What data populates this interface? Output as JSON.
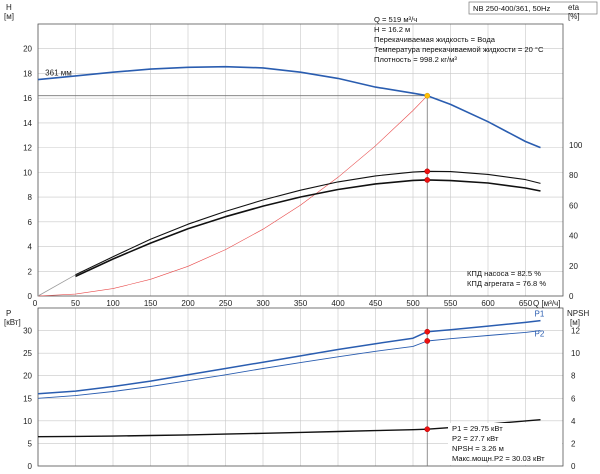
{
  "model": "NB 250-400/361, 50Hz",
  "chart_data": [
    {
      "id": "head_eff",
      "type": "line",
      "y_left_label": [
        "H",
        "[м]"
      ],
      "y_right_label": [
        "eta",
        "[%]"
      ],
      "x_label": "Q [м³/ч]",
      "xlim": [
        0,
        700
      ],
      "ylim_left": [
        0,
        22
      ],
      "ylim_right": [
        0,
        180
      ],
      "x_ticks": [
        0,
        50,
        100,
        150,
        200,
        250,
        300,
        350,
        400,
        450,
        500,
        550,
        600,
        650
      ],
      "y_left_ticks": [
        0,
        2,
        4,
        6,
        8,
        10,
        12,
        14,
        16,
        18,
        20
      ],
      "y_right_ticks": [
        0,
        20,
        40,
        60,
        80,
        100
      ],
      "curve_label": "361 мм",
      "grid": true,
      "series": [
        {
          "key": "head",
          "color": "#2a5db0",
          "width": 1.6,
          "axis": "left",
          "x": [
            0,
            50,
            100,
            150,
            200,
            250,
            300,
            350,
            400,
            450,
            500,
            519,
            550,
            600,
            650,
            670
          ],
          "y": [
            17.5,
            17.8,
            18.1,
            18.35,
            18.5,
            18.55,
            18.45,
            18.1,
            17.6,
            16.9,
            16.4,
            16.2,
            15.5,
            14.1,
            12.5,
            12.0
          ]
        },
        {
          "key": "system_curve",
          "color": "#e84a4a",
          "width": 0.6,
          "axis": "left",
          "x": [
            0,
            50,
            100,
            150,
            200,
            250,
            300,
            350,
            400,
            450,
            500,
            519
          ],
          "y": [
            0,
            0.15,
            0.6,
            1.35,
            2.4,
            3.75,
            5.4,
            7.35,
            9.6,
            12.15,
            15.0,
            16.2
          ]
        },
        {
          "key": "eta_pump",
          "color": "#111111",
          "width": 1.1,
          "axis": "right",
          "x": [
            50,
            100,
            150,
            200,
            250,
            300,
            350,
            400,
            450,
            500,
            519,
            550,
            600,
            650,
            670
          ],
          "y": [
            14,
            26,
            37.5,
            47.5,
            56,
            63.5,
            70,
            75.5,
            79.5,
            82,
            82.5,
            82.3,
            80.5,
            77,
            74.5
          ]
        },
        {
          "key": "eta_unit",
          "color": "#111111",
          "width": 1.6,
          "axis": "right",
          "x": [
            50,
            100,
            150,
            200,
            250,
            300,
            350,
            400,
            450,
            500,
            519,
            550,
            600,
            650,
            670
          ],
          "y": [
            13,
            24.5,
            35,
            44.5,
            52.5,
            59.5,
            65.5,
            70.5,
            74.2,
            76.5,
            76.8,
            76.4,
            74.8,
            71.5,
            69.5
          ]
        },
        {
          "key": "eta_grey",
          "color": "#9a9a9a",
          "width": 0.8,
          "axis": "right",
          "x": [
            0,
            50
          ],
          "y": [
            0,
            14
          ]
        }
      ],
      "markers": [
        {
          "x": 519,
          "y": 16.2,
          "axis": "left",
          "color": "#ffc107"
        },
        {
          "x": 519,
          "y": 82.5,
          "axis": "right",
          "color": "#e11"
        },
        {
          "x": 519,
          "y": 76.8,
          "axis": "right",
          "color": "#e11"
        }
      ],
      "info_lines": [
        "Q = 519 м³/ч",
        "H = 16.2 м",
        "Перекачиваемая жидкость = Вода",
        "Температура перекачиваемой жидкости = 20 °C",
        "Плотность = 998.2 кг/м³"
      ],
      "eff_lines": [
        "КПД насоса = 82.5 %",
        "КПД агрегата = 76.8 %"
      ]
    },
    {
      "id": "power_npsh",
      "type": "line",
      "y_left_label": [
        "P",
        "[кВт]"
      ],
      "y_right_label": [
        "NPSH",
        "[м]"
      ],
      "ylim_left": [
        0,
        35
      ],
      "ylim_right": [
        0,
        14
      ],
      "y_left_ticks": [
        0,
        5,
        10,
        15,
        20,
        25,
        30
      ],
      "y_right_ticks": [
        0,
        2,
        4,
        6,
        8,
        10,
        12
      ],
      "grid": true,
      "series": [
        {
          "key": "P1",
          "name": "P1",
          "color": "#2a5db0",
          "width": 1.5,
          "axis": "left",
          "x": [
            0,
            50,
            100,
            150,
            200,
            250,
            300,
            350,
            400,
            450,
            500,
            519,
            550,
            600,
            650,
            670
          ],
          "y": [
            16.0,
            16.6,
            17.6,
            18.8,
            20.2,
            21.6,
            23.0,
            24.4,
            25.8,
            27.1,
            28.3,
            29.75,
            30.2,
            31.0,
            31.8,
            32.2
          ]
        },
        {
          "key": "P2",
          "name": "P2",
          "color": "#2a5db0",
          "width": 0.9,
          "axis": "left",
          "x": [
            0,
            50,
            100,
            150,
            200,
            250,
            300,
            350,
            400,
            450,
            500,
            519,
            550,
            600,
            650,
            670
          ],
          "y": [
            15.0,
            15.6,
            16.5,
            17.6,
            18.9,
            20.2,
            21.6,
            22.9,
            24.2,
            25.4,
            26.5,
            27.7,
            28.2,
            28.9,
            29.6,
            30.0
          ]
        },
        {
          "key": "NPSH",
          "color": "#111111",
          "width": 1.4,
          "axis": "right",
          "x": [
            0,
            50,
            100,
            150,
            200,
            250,
            300,
            350,
            400,
            450,
            500,
            519,
            550,
            600,
            650,
            670
          ],
          "y": [
            2.6,
            2.62,
            2.65,
            2.7,
            2.76,
            2.83,
            2.9,
            2.98,
            3.06,
            3.14,
            3.22,
            3.26,
            3.4,
            3.7,
            4.0,
            4.1
          ]
        }
      ],
      "markers": [
        {
          "x": 519,
          "y": 29.75,
          "axis": "left",
          "color": "#e11"
        },
        {
          "x": 519,
          "y": 27.7,
          "axis": "left",
          "color": "#e11"
        },
        {
          "x": 519,
          "y": 3.26,
          "axis": "right",
          "color": "#e11"
        }
      ],
      "info_lines": [
        "P1 = 29.75 кВт",
        "P2 = 27.7 кВт",
        "NPSH = 3.26 м",
        "Макс.мощн.P2 = 30.03 кВт"
      ]
    }
  ]
}
